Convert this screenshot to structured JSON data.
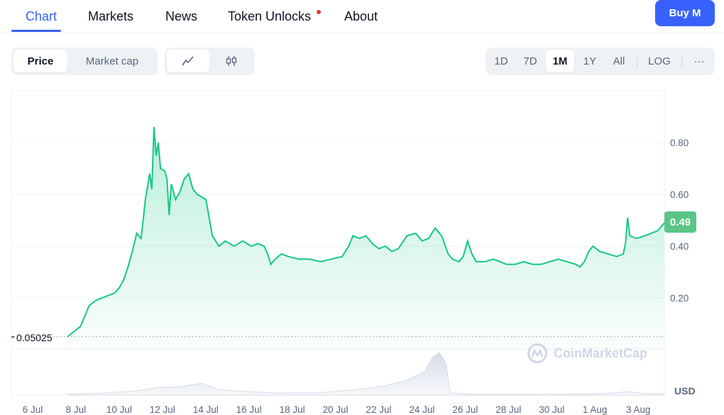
{
  "nav": {
    "tabs": [
      {
        "label": "Chart",
        "active": true
      },
      {
        "label": "Markets"
      },
      {
        "label": "News"
      },
      {
        "label": "Token Unlocks",
        "has_dot": true
      },
      {
        "label": "About"
      }
    ],
    "buy_label": "Buy M"
  },
  "controls": {
    "metric_tabs": [
      {
        "label": "Price",
        "active": true
      },
      {
        "label": "Market cap"
      }
    ],
    "chart_style_icons": [
      "line-chart-icon",
      "candlestick-icon"
    ],
    "ranges": [
      {
        "label": "1D"
      },
      {
        "label": "7D"
      },
      {
        "label": "1M",
        "active": true
      },
      {
        "label": "1Y"
      },
      {
        "label": "All"
      }
    ],
    "log_label": "LOG",
    "more_label": "···"
  },
  "price_badge": "0.49",
  "open_price_label": "0.05025",
  "volume_unit": "USD",
  "watermark": "CoinMarketCap",
  "colors": {
    "accent": "#3861fb",
    "line": "#16c784",
    "badge": "#5ac586"
  },
  "chart_data": {
    "type": "area",
    "title": "",
    "xlabel": "",
    "ylabel": "",
    "x_ticks": [
      "6 Jul",
      "8 Jul",
      "10 Jul",
      "12 Jul",
      "14 Jul",
      "16 Jul",
      "18 Jul",
      "20 Jul",
      "22 Jul",
      "24 Jul",
      "26 Jul",
      "28 Jul",
      "30 Jul",
      "1 Aug",
      "3 Aug"
    ],
    "y_ticks": [
      0.2,
      0.4,
      0.6,
      0.8
    ],
    "ylim": [
      0,
      1.0
    ],
    "xlim": [
      6.0,
      35.9
    ],
    "baseline": 0.05025,
    "grid": true,
    "series": [
      {
        "points": [
          [
            8.3,
            0.05
          ],
          [
            8.6,
            0.07
          ],
          [
            8.9,
            0.09
          ],
          [
            9.1,
            0.13
          ],
          [
            9.3,
            0.17
          ],
          [
            9.6,
            0.19
          ],
          [
            9.9,
            0.2
          ],
          [
            10.2,
            0.21
          ],
          [
            10.5,
            0.22
          ],
          [
            10.7,
            0.24
          ],
          [
            10.9,
            0.27
          ],
          [
            11.1,
            0.32
          ],
          [
            11.3,
            0.38
          ],
          [
            11.5,
            0.45
          ],
          [
            11.7,
            0.43
          ],
          [
            11.8,
            0.5
          ],
          [
            11.9,
            0.58
          ],
          [
            12.1,
            0.68
          ],
          [
            12.2,
            0.62
          ],
          [
            12.3,
            0.86
          ],
          [
            12.4,
            0.75
          ],
          [
            12.5,
            0.8
          ],
          [
            12.6,
            0.7
          ],
          [
            12.8,
            0.69
          ],
          [
            12.9,
            0.66
          ],
          [
            13.0,
            0.52
          ],
          [
            13.1,
            0.64
          ],
          [
            13.3,
            0.58
          ],
          [
            13.5,
            0.61
          ],
          [
            13.7,
            0.66
          ],
          [
            13.9,
            0.68
          ],
          [
            14.1,
            0.62
          ],
          [
            14.3,
            0.6
          ],
          [
            14.5,
            0.59
          ],
          [
            14.7,
            0.58
          ],
          [
            15.0,
            0.44
          ],
          [
            15.3,
            0.4
          ],
          [
            15.6,
            0.42
          ],
          [
            16.0,
            0.4
          ],
          [
            16.4,
            0.42
          ],
          [
            16.8,
            0.4
          ],
          [
            17.1,
            0.41
          ],
          [
            17.4,
            0.4
          ],
          [
            17.6,
            0.36
          ],
          [
            17.7,
            0.33
          ],
          [
            17.9,
            0.35
          ],
          [
            18.2,
            0.37
          ],
          [
            18.5,
            0.36
          ],
          [
            19.0,
            0.35
          ],
          [
            19.5,
            0.35
          ],
          [
            20.0,
            0.34
          ],
          [
            20.5,
            0.35
          ],
          [
            21.0,
            0.36
          ],
          [
            21.3,
            0.4
          ],
          [
            21.5,
            0.44
          ],
          [
            21.8,
            0.43
          ],
          [
            22.1,
            0.44
          ],
          [
            22.4,
            0.41
          ],
          [
            22.7,
            0.39
          ],
          [
            23.0,
            0.4
          ],
          [
            23.3,
            0.38
          ],
          [
            23.6,
            0.39
          ],
          [
            24.0,
            0.44
          ],
          [
            24.4,
            0.45
          ],
          [
            24.7,
            0.42
          ],
          [
            25.0,
            0.43
          ],
          [
            25.3,
            0.47
          ],
          [
            25.6,
            0.44
          ],
          [
            25.9,
            0.37
          ],
          [
            26.1,
            0.35
          ],
          [
            26.4,
            0.34
          ],
          [
            26.6,
            0.36
          ],
          [
            26.8,
            0.42
          ],
          [
            27.0,
            0.37
          ],
          [
            27.2,
            0.34
          ],
          [
            27.6,
            0.34
          ],
          [
            28.0,
            0.35
          ],
          [
            28.3,
            0.34
          ],
          [
            28.6,
            0.33
          ],
          [
            29.0,
            0.33
          ],
          [
            29.4,
            0.34
          ],
          [
            29.8,
            0.33
          ],
          [
            30.2,
            0.33
          ],
          [
            30.6,
            0.34
          ],
          [
            31.0,
            0.35
          ],
          [
            31.4,
            0.34
          ],
          [
            31.8,
            0.33
          ],
          [
            32.0,
            0.32
          ],
          [
            32.2,
            0.34
          ],
          [
            32.4,
            0.38
          ],
          [
            32.6,
            0.4
          ],
          [
            32.9,
            0.38
          ],
          [
            33.3,
            0.37
          ],
          [
            33.7,
            0.36
          ],
          [
            34.0,
            0.37
          ],
          [
            34.1,
            0.41
          ],
          [
            34.2,
            0.51
          ],
          [
            34.3,
            0.44
          ],
          [
            34.6,
            0.43
          ],
          [
            35.0,
            0.44
          ],
          [
            35.3,
            0.45
          ],
          [
            35.6,
            0.46
          ],
          [
            35.9,
            0.49
          ]
        ]
      }
    ],
    "volume": {
      "unit": "USD",
      "points": [
        [
          8.3,
          0.02
        ],
        [
          10.0,
          0.05
        ],
        [
          11.5,
          0.1
        ],
        [
          12.5,
          0.18
        ],
        [
          13.5,
          0.2
        ],
        [
          14.5,
          0.28
        ],
        [
          15.2,
          0.15
        ],
        [
          16.0,
          0.1
        ],
        [
          18.0,
          0.05
        ],
        [
          20.0,
          0.06
        ],
        [
          21.5,
          0.12
        ],
        [
          23.0,
          0.22
        ],
        [
          24.0,
          0.35
        ],
        [
          24.8,
          0.55
        ],
        [
          25.2,
          0.9
        ],
        [
          25.5,
          1.0
        ],
        [
          25.8,
          0.75
        ],
        [
          26.0,
          0.05
        ],
        [
          27.0,
          0.02
        ],
        [
          30.0,
          0.02
        ],
        [
          33.0,
          0.03
        ],
        [
          34.2,
          0.08
        ],
        [
          35.0,
          0.04
        ],
        [
          35.9,
          0.03
        ]
      ]
    }
  }
}
